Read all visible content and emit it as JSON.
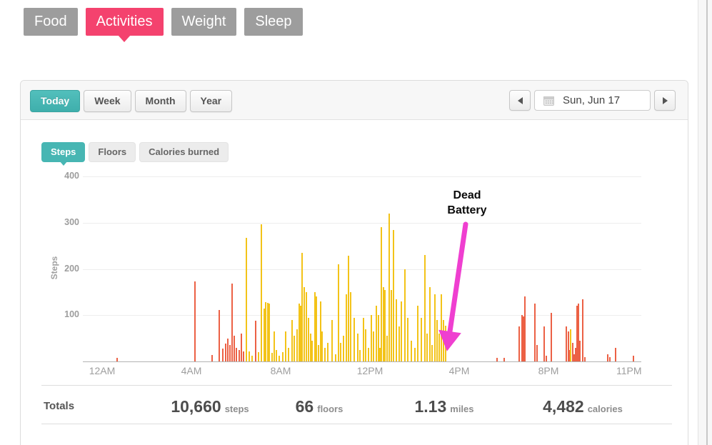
{
  "nav": {
    "tabs": [
      {
        "label": "Food",
        "active": false
      },
      {
        "label": "Activities",
        "active": true
      },
      {
        "label": "Weight",
        "active": false
      },
      {
        "label": "Sleep",
        "active": false
      }
    ]
  },
  "toolbar": {
    "range_tabs": [
      {
        "label": "Today",
        "active": true
      },
      {
        "label": "Week",
        "active": false
      },
      {
        "label": "Month",
        "active": false
      },
      {
        "label": "Year",
        "active": false
      }
    ],
    "date_nav": {
      "prev_icon": "chevron-left",
      "next_icon": "chevron-right",
      "calendar_icon": "calendar",
      "date_label": "Sun, Jun 17"
    }
  },
  "metric_tabs": [
    {
      "label": "Steps",
      "active": true
    },
    {
      "label": "Floors",
      "active": false
    },
    {
      "label": "Calories burned",
      "active": false
    }
  ],
  "chart_data": {
    "type": "bar",
    "title": "",
    "ylabel": "Steps",
    "xlabel": "",
    "yticks": [
      100,
      200,
      300,
      400
    ],
    "ylim": [
      0,
      420
    ],
    "xlim_hours": [
      0,
      24.2
    ],
    "grid": true,
    "legend": false,
    "xticks": [
      {
        "hour": 0,
        "label": "12AM"
      },
      {
        "hour": 4,
        "label": "4AM"
      },
      {
        "hour": 8,
        "label": "8AM"
      },
      {
        "hour": 12,
        "label": "12PM"
      },
      {
        "hour": 16,
        "label": "4PM"
      },
      {
        "hour": 20,
        "label": "8PM"
      },
      {
        "hour": 23,
        "label": "11PM"
      }
    ],
    "bar_colors": {
      "y": "#f3c318",
      "r": "#ec6145"
    },
    "annotation": {
      "lines": [
        "Dead",
        "Battery"
      ],
      "arrow_color": "#ef3fd0",
      "points_to_hour": 15.5
    },
    "bars": [
      [
        0.68,
        8,
        "r"
      ],
      [
        4.16,
        173,
        "r"
      ],
      [
        4.93,
        14,
        "r"
      ],
      [
        5.25,
        111,
        "r"
      ],
      [
        5.42,
        28,
        "r"
      ],
      [
        5.52,
        38,
        "r"
      ],
      [
        5.62,
        50,
        "r"
      ],
      [
        5.72,
        35,
        "r"
      ],
      [
        5.83,
        168,
        "r"
      ],
      [
        5.93,
        55,
        "r"
      ],
      [
        6.03,
        30,
        "r"
      ],
      [
        6.13,
        25,
        "r"
      ],
      [
        6.24,
        60,
        "r"
      ],
      [
        6.34,
        22,
        "r"
      ],
      [
        6.47,
        268,
        "y"
      ],
      [
        6.6,
        22,
        "y"
      ],
      [
        6.72,
        12,
        "y"
      ],
      [
        6.88,
        88,
        "r"
      ],
      [
        7.0,
        20,
        "y"
      ],
      [
        7.14,
        296,
        "y"
      ],
      [
        7.26,
        115,
        "y"
      ],
      [
        7.34,
        128,
        "y"
      ],
      [
        7.42,
        127,
        "y"
      ],
      [
        7.5,
        125,
        "y"
      ],
      [
        7.6,
        18,
        "y"
      ],
      [
        7.72,
        65,
        "y"
      ],
      [
        7.82,
        25,
        "y"
      ],
      [
        7.95,
        12,
        "y"
      ],
      [
        8.1,
        20,
        "y"
      ],
      [
        8.22,
        65,
        "y"
      ],
      [
        8.35,
        30,
        "y"
      ],
      [
        8.5,
        90,
        "y"
      ],
      [
        8.62,
        55,
        "y"
      ],
      [
        8.72,
        70,
        "y"
      ],
      [
        8.82,
        125,
        "y"
      ],
      [
        8.9,
        120,
        "y"
      ],
      [
        8.97,
        235,
        "y"
      ],
      [
        9.06,
        160,
        "y"
      ],
      [
        9.14,
        150,
        "y"
      ],
      [
        9.24,
        95,
        "y"
      ],
      [
        9.33,
        60,
        "y"
      ],
      [
        9.42,
        45,
        "y"
      ],
      [
        9.52,
        150,
        "y"
      ],
      [
        9.6,
        140,
        "y"
      ],
      [
        9.7,
        35,
        "y"
      ],
      [
        9.78,
        130,
        "y"
      ],
      [
        9.87,
        65,
        "y"
      ],
      [
        9.97,
        30,
        "y"
      ],
      [
        10.1,
        40,
        "y"
      ],
      [
        10.3,
        90,
        "y"
      ],
      [
        10.45,
        15,
        "y"
      ],
      [
        10.59,
        210,
        "y"
      ],
      [
        10.7,
        40,
        "y"
      ],
      [
        10.82,
        55,
        "y"
      ],
      [
        10.95,
        145,
        "y"
      ],
      [
        11.04,
        228,
        "y"
      ],
      [
        11.15,
        150,
        "y"
      ],
      [
        11.3,
        95,
        "y"
      ],
      [
        11.45,
        60,
        "y"
      ],
      [
        11.55,
        25,
        "y"
      ],
      [
        11.7,
        95,
        "y"
      ],
      [
        11.8,
        70,
        "y"
      ],
      [
        11.92,
        30,
        "y"
      ],
      [
        12.05,
        100,
        "y"
      ],
      [
        12.15,
        65,
        "y"
      ],
      [
        12.28,
        120,
        "y"
      ],
      [
        12.38,
        100,
        "y"
      ],
      [
        12.45,
        30,
        "y"
      ],
      [
        12.51,
        290,
        "y"
      ],
      [
        12.6,
        160,
        "y"
      ],
      [
        12.67,
        155,
        "y"
      ],
      [
        12.76,
        55,
        "y"
      ],
      [
        12.86,
        320,
        "y"
      ],
      [
        12.95,
        155,
        "y"
      ],
      [
        13.06,
        285,
        "y"
      ],
      [
        13.18,
        135,
        "y"
      ],
      [
        13.3,
        75,
        "y"
      ],
      [
        13.42,
        130,
        "y"
      ],
      [
        13.58,
        200,
        "y"
      ],
      [
        13.7,
        95,
        "y"
      ],
      [
        13.85,
        45,
        "y"
      ],
      [
        14.0,
        30,
        "y"
      ],
      [
        14.15,
        120,
        "y"
      ],
      [
        14.3,
        95,
        "y"
      ],
      [
        14.45,
        230,
        "y"
      ],
      [
        14.56,
        60,
        "y"
      ],
      [
        14.68,
        160,
        "y"
      ],
      [
        14.78,
        35,
        "y"
      ],
      [
        14.9,
        145,
        "y"
      ],
      [
        15.0,
        90,
        "y"
      ],
      [
        15.1,
        60,
        "y"
      ],
      [
        15.2,
        145,
        "y"
      ],
      [
        15.3,
        90,
        "y"
      ],
      [
        15.4,
        78,
        "y"
      ],
      [
        17.7,
        8,
        "r"
      ],
      [
        18.0,
        8,
        "r"
      ],
      [
        18.7,
        75,
        "r"
      ],
      [
        18.8,
        100,
        "r"
      ],
      [
        18.87,
        98,
        "r"
      ],
      [
        18.94,
        140,
        "r"
      ],
      [
        19.39,
        125,
        "r"
      ],
      [
        19.5,
        35,
        "r"
      ],
      [
        19.8,
        75,
        "r"
      ],
      [
        19.9,
        12,
        "r"
      ],
      [
        20.13,
        105,
        "r"
      ],
      [
        20.8,
        75,
        "r"
      ],
      [
        20.88,
        65,
        "r"
      ],
      [
        20.95,
        25,
        "r"
      ],
      [
        21.0,
        70,
        "y"
      ],
      [
        21.08,
        40,
        "r"
      ],
      [
        21.16,
        15,
        "r"
      ],
      [
        21.22,
        30,
        "r"
      ],
      [
        21.28,
        120,
        "r"
      ],
      [
        21.35,
        125,
        "r"
      ],
      [
        21.42,
        45,
        "r"
      ],
      [
        21.54,
        135,
        "r"
      ],
      [
        21.62,
        10,
        "r"
      ],
      [
        22.65,
        15,
        "r"
      ],
      [
        22.75,
        10,
        "r"
      ],
      [
        23.0,
        30,
        "r"
      ],
      [
        23.8,
        12,
        "r"
      ]
    ]
  },
  "totals": {
    "label": "Totals",
    "items": [
      {
        "value": "10,660",
        "unit": "steps"
      },
      {
        "value": "66",
        "unit": "floors"
      },
      {
        "value": "1.13",
        "unit": "miles"
      },
      {
        "value": "4,482",
        "unit": "calories"
      }
    ]
  },
  "colors": {
    "accent_pink": "#f4426e",
    "accent_teal": "#47b6b3",
    "bar_yellow": "#f3c318",
    "bar_red": "#ec6145",
    "arrow_magenta": "#ef3fd0"
  }
}
